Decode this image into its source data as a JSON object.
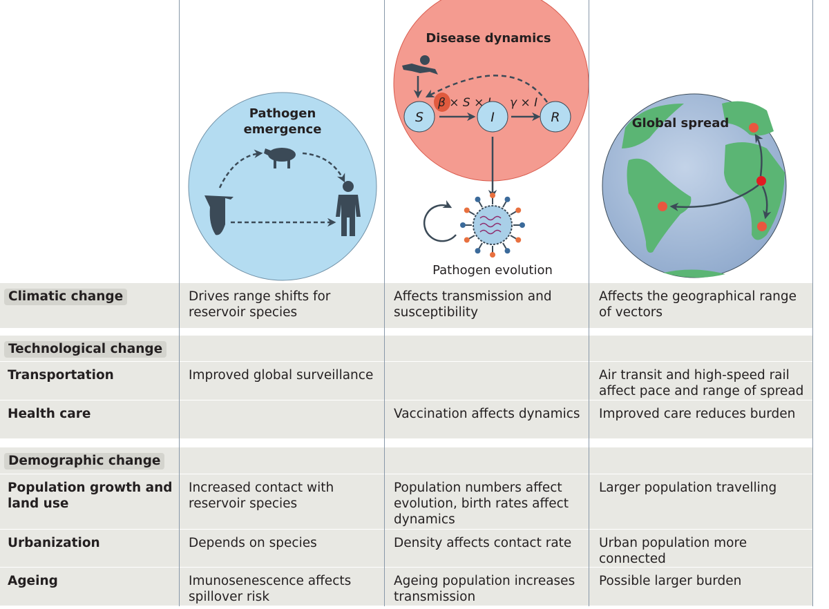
{
  "illustrations": {
    "emergence_title_1": "Pathogen",
    "emergence_title_2": "emergence",
    "dynamics_title": "Disease dynamics",
    "sir": {
      "s": "S",
      "i": "I",
      "r": "R",
      "infection_rate": "β × S × I",
      "recovery_rate": "γ × I"
    },
    "evolution_label": "Pathogen evolution",
    "spread_title": "Global spread",
    "colors": {
      "emergence": "#b4dcf1",
      "dynamics": "#f49b90",
      "ocean": "#a9bfdc",
      "land": "#5bb574",
      "spread_point": "#e8573f",
      "origin_point": "#e11b22"
    }
  },
  "table": {
    "rows": [
      {
        "type": "header",
        "label": "Climatic change",
        "cells": [
          "Drives range shifts for reservoir species",
          "Affects transmission and susceptibility",
          "Affects the geographical range of vectors"
        ]
      },
      {
        "type": "header",
        "label": "Technological change",
        "cells": [
          "",
          "",
          ""
        ]
      },
      {
        "type": "sub",
        "label": "Transportation",
        "cells": [
          "Improved global surveillance",
          "",
          "Air transit and high-speed rail affect pace and range of spread"
        ]
      },
      {
        "type": "sub",
        "label": "Health care",
        "cells": [
          "",
          "Vaccination affects dynamics",
          "Improved care reduces burden"
        ]
      },
      {
        "type": "header",
        "label": "Demographic change",
        "cells": [
          "",
          "",
          ""
        ]
      },
      {
        "type": "sub",
        "label": "Population growth and land use",
        "cells": [
          "Increased contact with reservoir species",
          "Population numbers affect evolution, birth rates affect dynamics",
          "Larger population travelling"
        ]
      },
      {
        "type": "sub",
        "label": "Urbanization",
        "cells": [
          "Depends on species",
          "Density affects contact rate",
          "Urban population more connected"
        ]
      },
      {
        "type": "sub",
        "label": "Ageing",
        "cells": [
          "Imunosenescence affects spillover risk",
          "Ageing population increases transmission",
          "Possible larger burden"
        ]
      }
    ]
  }
}
